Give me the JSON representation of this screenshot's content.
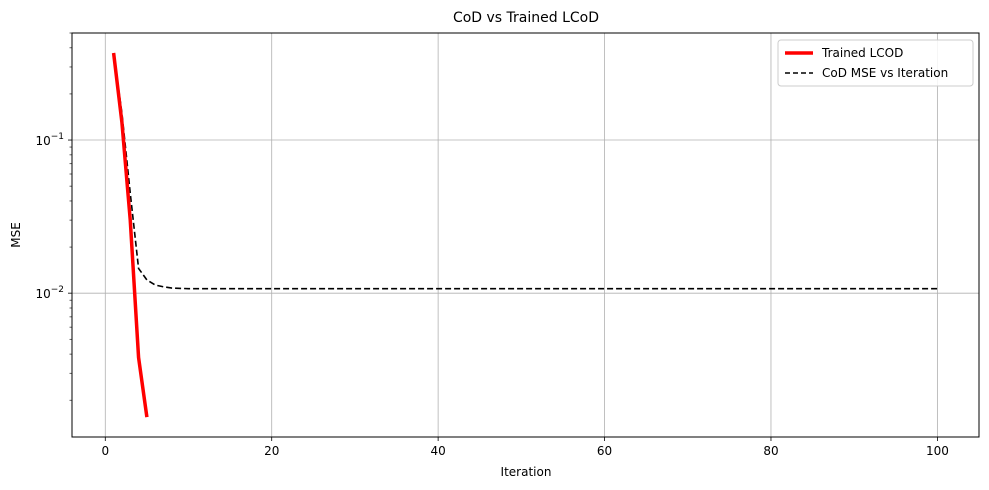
{
  "chart_data": {
    "type": "line",
    "title": "CoD vs Trained LCoD",
    "xlabel": "Iteration",
    "ylabel": "MSE",
    "xlim": [
      -4,
      105
    ],
    "ylim": [
      0.00115,
      0.5
    ],
    "yscale": "log",
    "grid": true,
    "legend_position": "top-right",
    "x_ticks": [
      0,
      20,
      40,
      60,
      80,
      100
    ],
    "x_tick_labels": [
      "0",
      "20",
      "40",
      "60",
      "80",
      "100"
    ],
    "y_major_ticks": [
      0.01,
      0.1
    ],
    "y_tick_labels": [
      {
        "base": "10",
        "exp": "−2"
      },
      {
        "base": "10",
        "exp": "−1"
      }
    ],
    "series": [
      {
        "name": "Trained LCOD",
        "color": "#ff0000",
        "style": "solid",
        "x": [
          1,
          2,
          3,
          4,
          5
        ],
        "y": [
          0.37,
          0.13,
          0.03,
          0.0038,
          0.00155
        ]
      },
      {
        "name": "CoD MSE vs Iteration",
        "color": "#000000",
        "style": "dashed",
        "x": [
          1,
          2,
          3,
          4,
          5,
          6,
          7,
          8,
          10,
          15,
          20,
          30,
          40,
          50,
          60,
          70,
          80,
          90,
          100
        ],
        "y": [
          0.37,
          0.15,
          0.045,
          0.0145,
          0.0122,
          0.0113,
          0.011,
          0.0108,
          0.0107,
          0.0107,
          0.0107,
          0.0107,
          0.0107,
          0.0107,
          0.0107,
          0.0107,
          0.0107,
          0.0107,
          0.0107
        ]
      }
    ]
  }
}
